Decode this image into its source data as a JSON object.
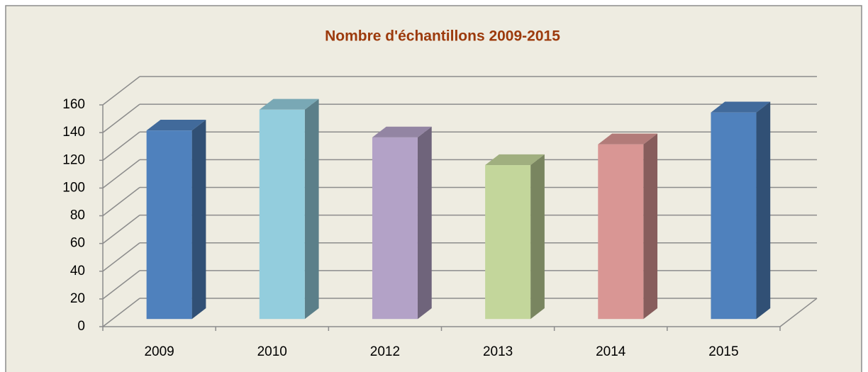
{
  "chart_data": {
    "type": "bar3d",
    "title": "Nombre d'échantillons 2009-2015",
    "categories": [
      "2009",
      "2010",
      "2012",
      "2013",
      "2014",
      "2015"
    ],
    "series": [
      {
        "name": "Nombre d'échantillons",
        "values": [
          136,
          151,
          131,
          111,
          126,
          149
        ]
      }
    ],
    "colors": [
      "#4f81bd",
      "#93cddd",
      "#b3a2c7",
      "#c3d69b",
      "#d99694",
      "#4f81bd"
    ],
    "ylim": [
      0,
      160
    ],
    "yticks": [
      0,
      20,
      40,
      60,
      80,
      100,
      120,
      140,
      160
    ],
    "grid": true
  }
}
